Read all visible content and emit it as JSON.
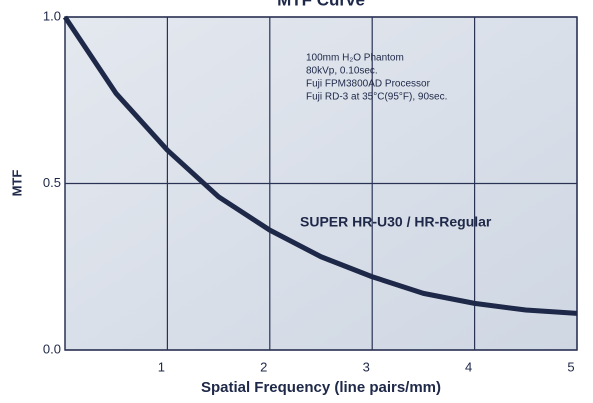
{
  "chart_data": {
    "type": "line",
    "title": "MTF Curve",
    "x_label": "Spatial Frequency (line pairs/mm)",
    "y_label": "MTF",
    "x": [
      0,
      0.5,
      1,
      1.5,
      2,
      2.5,
      3,
      3.5,
      4,
      4.5,
      5
    ],
    "series": [
      {
        "name": "SUPER HR-U30 / HR-Regular",
        "color": "#1e2848",
        "values": [
          1.0,
          0.77,
          0.6,
          0.46,
          0.36,
          0.28,
          0.22,
          0.17,
          0.14,
          0.12,
          0.11
        ]
      }
    ],
    "xlim": [
      0,
      5
    ],
    "xticks": [
      1,
      2,
      3,
      4,
      5
    ],
    "ylim": [
      0,
      1
    ],
    "yticks": [
      {
        "value": 0,
        "label": "0.0"
      },
      0.5,
      {
        "value": 1,
        "label": "1.0"
      }
    ],
    "grid": true,
    "annotations": [
      "100mm H₂O Phantom",
      "80kVp, 0.10sec.",
      "Fuji FPM3800AD Processor",
      "Fuji RD-3  at 35°C(95°F), 90sec."
    ]
  }
}
